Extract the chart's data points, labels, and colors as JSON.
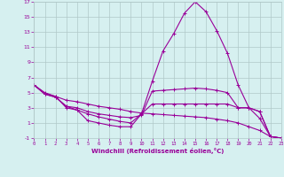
{
  "xlabel": "Windchill (Refroidissement éolien,°C)",
  "bg_color": "#d6f0f0",
  "grid_color": "#b0c8c8",
  "line_color": "#990099",
  "xlim": [
    0,
    23
  ],
  "ylim": [
    -1,
    17
  ],
  "xticks": [
    0,
    1,
    2,
    3,
    4,
    5,
    6,
    7,
    8,
    9,
    10,
    11,
    12,
    13,
    14,
    15,
    16,
    17,
    18,
    19,
    20,
    21,
    22,
    23
  ],
  "yticks": [
    -1,
    1,
    3,
    5,
    7,
    9,
    11,
    13,
    15,
    17
  ],
  "series": [
    [
      0,
      6.0
    ],
    [
      1,
      5.0
    ],
    [
      2,
      4.5
    ],
    [
      3,
      3.0
    ],
    [
      4,
      2.7
    ],
    [
      5,
      1.3
    ],
    [
      6,
      1.0
    ],
    [
      7,
      0.7
    ],
    [
      8,
      0.5
    ],
    [
      9,
      0.5
    ],
    [
      10,
      2.2
    ],
    [
      11,
      6.5
    ],
    [
      12,
      10.5
    ],
    [
      13,
      12.8
    ],
    [
      14,
      15.5
    ],
    [
      15,
      17.0
    ],
    [
      16,
      15.7
    ],
    [
      17,
      13.2
    ],
    [
      18,
      10.2
    ],
    [
      19,
      6.0
    ],
    [
      20,
      3.0
    ],
    [
      21,
      1.6
    ],
    [
      22,
      -0.8
    ],
    [
      23,
      -1.0
    ]
  ],
  "series2": [
    [
      0,
      6.0
    ],
    [
      1,
      4.8
    ],
    [
      2,
      4.4
    ],
    [
      3,
      3.2
    ],
    [
      4,
      3.0
    ],
    [
      5,
      2.5
    ],
    [
      6,
      2.2
    ],
    [
      7,
      2.0
    ],
    [
      8,
      1.8
    ],
    [
      9,
      1.7
    ],
    [
      10,
      2.0
    ],
    [
      11,
      5.2
    ],
    [
      12,
      5.3
    ],
    [
      13,
      5.4
    ],
    [
      14,
      5.5
    ],
    [
      15,
      5.6
    ],
    [
      16,
      5.5
    ],
    [
      17,
      5.3
    ],
    [
      18,
      5.0
    ],
    [
      19,
      3.0
    ],
    [
      20,
      3.0
    ],
    [
      21,
      2.5
    ],
    [
      22,
      -0.8
    ],
    [
      23,
      -1.0
    ]
  ],
  "series3": [
    [
      0,
      6.0
    ],
    [
      1,
      4.8
    ],
    [
      2,
      4.4
    ],
    [
      3,
      3.2
    ],
    [
      4,
      2.7
    ],
    [
      5,
      2.2
    ],
    [
      6,
      1.8
    ],
    [
      7,
      1.5
    ],
    [
      8,
      1.2
    ],
    [
      9,
      1.0
    ],
    [
      10,
      2.2
    ],
    [
      11,
      3.5
    ],
    [
      12,
      3.5
    ],
    [
      13,
      3.5
    ],
    [
      14,
      3.5
    ],
    [
      15,
      3.5
    ],
    [
      16,
      3.5
    ],
    [
      17,
      3.5
    ],
    [
      18,
      3.5
    ],
    [
      19,
      3.0
    ],
    [
      20,
      3.0
    ],
    [
      21,
      2.5
    ],
    [
      22,
      -0.8
    ],
    [
      23,
      -1.0
    ]
  ],
  "series4": [
    [
      0,
      6.0
    ],
    [
      1,
      4.9
    ],
    [
      2,
      4.5
    ],
    [
      3,
      4.0
    ],
    [
      4,
      3.8
    ],
    [
      5,
      3.5
    ],
    [
      6,
      3.2
    ],
    [
      7,
      3.0
    ],
    [
      8,
      2.8
    ],
    [
      9,
      2.5
    ],
    [
      10,
      2.3
    ],
    [
      11,
      2.2
    ],
    [
      12,
      2.1
    ],
    [
      13,
      2.0
    ],
    [
      14,
      1.9
    ],
    [
      15,
      1.8
    ],
    [
      16,
      1.7
    ],
    [
      17,
      1.5
    ],
    [
      18,
      1.3
    ],
    [
      19,
      1.0
    ],
    [
      20,
      0.5
    ],
    [
      21,
      0.0
    ],
    [
      22,
      -0.8
    ],
    [
      23,
      -1.0
    ]
  ]
}
